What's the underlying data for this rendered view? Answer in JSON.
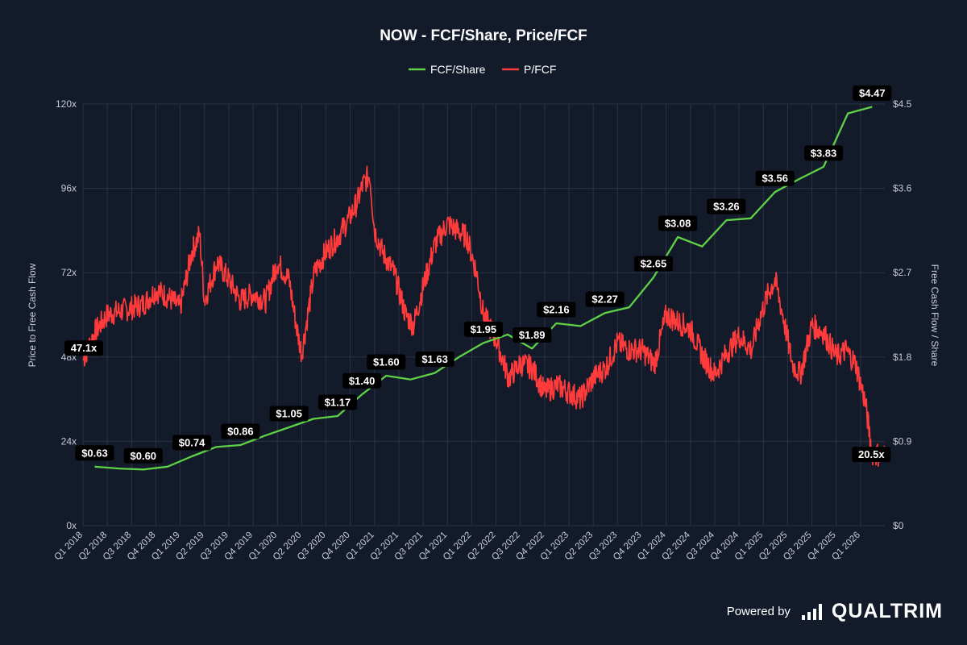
{
  "chart_data": {
    "type": "line",
    "title": "NOW - FCF/Share, Price/FCF",
    "legend": {
      "placement": "top-center"
    },
    "ylabel_left": "Price to Free Cash Flow",
    "ylabel_right": "Free Cash Flow / Share",
    "ylim_left": [
      0,
      120
    ],
    "ylim_right": [
      0,
      4.5
    ],
    "yticks_left": [
      "0x",
      "24x",
      "48x",
      "72x",
      "96x",
      "120x"
    ],
    "yticks_right": [
      "$0",
      "$0.9",
      "$1.8",
      "$2.7",
      "$3.6",
      "$4.5"
    ],
    "x_range": [
      2018.0,
      2026.25
    ],
    "xticks": [
      "Q1 2018",
      "Q2 2018",
      "Q3 2018",
      "Q4 2018",
      "Q1 2019",
      "Q2 2019",
      "Q3 2019",
      "Q4 2019",
      "Q1 2020",
      "Q2 2020",
      "Q3 2020",
      "Q4 2020",
      "Q1 2021",
      "Q2 2021",
      "Q3 2021",
      "Q4 2021",
      "Q1 2022",
      "Q2 2022",
      "Q3 2022",
      "Q4 2022",
      "Q1 2023",
      "Q2 2023",
      "Q3 2023",
      "Q4 2023",
      "Q1 2024",
      "Q2 2024",
      "Q3 2024",
      "Q4 2024",
      "Q1 2025",
      "Q2 2025",
      "Q3 2025",
      "Q4 2025",
      "Q1 2026"
    ],
    "grid": true,
    "colors": {
      "fcf": "#5fd146",
      "pfcf": "#ff3b3b",
      "grid": "#2b3347",
      "text": "#c6cbd6"
    },
    "series": [
      {
        "name": "FCF/Share",
        "axis": "right",
        "color": "#5fd146",
        "x": [
          2018.12,
          2018.37,
          2018.62,
          2018.87,
          2019.12,
          2019.37,
          2019.62,
          2019.87,
          2020.12,
          2020.37,
          2020.62,
          2020.87,
          2021.12,
          2021.37,
          2021.62,
          2021.87,
          2022.12,
          2022.37,
          2022.62,
          2022.87,
          2023.12,
          2023.37,
          2023.62,
          2023.87,
          2024.12,
          2024.37,
          2024.62,
          2024.87,
          2025.12,
          2025.37,
          2025.62,
          2025.87,
          2026.12
        ],
        "values": [
          0.63,
          0.61,
          0.6,
          0.63,
          0.74,
          0.84,
          0.86,
          0.96,
          1.05,
          1.14,
          1.17,
          1.4,
          1.6,
          1.56,
          1.63,
          1.8,
          1.95,
          2.04,
          1.89,
          2.16,
          2.13,
          2.27,
          2.33,
          2.65,
          3.08,
          2.98,
          3.26,
          3.28,
          3.56,
          3.7,
          3.83,
          4.4,
          4.47
        ],
        "labels": [
          {
            "x": 2018.12,
            "value": 0.63,
            "text": "$0.63"
          },
          {
            "x": 2018.62,
            "value": 0.6,
            "text": "$0.60"
          },
          {
            "x": 2019.12,
            "value": 0.74,
            "text": "$0.74"
          },
          {
            "x": 2019.62,
            "value": 0.86,
            "text": "$0.86"
          },
          {
            "x": 2020.12,
            "value": 1.05,
            "text": "$1.05"
          },
          {
            "x": 2020.62,
            "value": 1.17,
            "text": "$1.17"
          },
          {
            "x": 2020.87,
            "value": 1.4,
            "text": "$1.40"
          },
          {
            "x": 2021.12,
            "value": 1.6,
            "text": "$1.60"
          },
          {
            "x": 2021.62,
            "value": 1.63,
            "text": "$1.63"
          },
          {
            "x": 2022.12,
            "value": 1.95,
            "text": "$1.95"
          },
          {
            "x": 2022.62,
            "value": 1.89,
            "text": "$1.89"
          },
          {
            "x": 2022.87,
            "value": 2.16,
            "text": "$2.16"
          },
          {
            "x": 2023.37,
            "value": 2.27,
            "text": "$2.27"
          },
          {
            "x": 2023.87,
            "value": 2.65,
            "text": "$2.65"
          },
          {
            "x": 2024.12,
            "value": 3.08,
            "text": "$3.08"
          },
          {
            "x": 2024.62,
            "value": 3.26,
            "text": "$3.26"
          },
          {
            "x": 2025.12,
            "value": 3.56,
            "text": "$3.56"
          },
          {
            "x": 2025.62,
            "value": 3.83,
            "text": "$3.83"
          },
          {
            "x": 2026.12,
            "value": 4.47,
            "text": "$4.47"
          }
        ]
      },
      {
        "name": "P/FCF",
        "axis": "left",
        "color": "#ff3b3b",
        "x": [
          2018.0,
          2018.12,
          2018.25,
          2018.5,
          2018.62,
          2018.75,
          2018.88,
          2019.0,
          2019.12,
          2019.2,
          2019.25,
          2019.38,
          2019.5,
          2019.62,
          2019.75,
          2019.88,
          2020.0,
          2020.12,
          2020.2,
          2020.25,
          2020.38,
          2020.5,
          2020.62,
          2020.75,
          2020.82,
          2020.88,
          2020.95,
          2021.0,
          2021.08,
          2021.2,
          2021.32,
          2021.4,
          2021.5,
          2021.62,
          2021.75,
          2021.85,
          2021.95,
          2022.05,
          2022.12,
          2022.25,
          2022.38,
          2022.5,
          2022.62,
          2022.75,
          2022.88,
          2023.0,
          2023.12,
          2023.25,
          2023.38,
          2023.5,
          2023.62,
          2023.75,
          2023.88,
          2024.0,
          2024.12,
          2024.25,
          2024.38,
          2024.5,
          2024.62,
          2024.75,
          2024.88,
          2024.95,
          2025.05,
          2025.12,
          2025.2,
          2025.3,
          2025.38,
          2025.5,
          2025.62,
          2025.75,
          2025.85,
          2025.95,
          2026.05,
          2026.12,
          2026.25
        ],
        "values": [
          47.1,
          55,
          60,
          62,
          63,
          67,
          65,
          62,
          78,
          83,
          64,
          75,
          70,
          64,
          66,
          64,
          75,
          70,
          56,
          49,
          72,
          78,
          82,
          88,
          92,
          97,
          100,
          84,
          78,
          72,
          60,
          57,
          68,
          80,
          86,
          84,
          82,
          72,
          60,
          53,
          42,
          46,
          45,
          38,
          40,
          38,
          36,
          42,
          45,
          52,
          50,
          50,
          46,
          60,
          58,
          56,
          48,
          43,
          49,
          54,
          50,
          58,
          66,
          70,
          60,
          46,
          43,
          57,
          55,
          48,
          50,
          46,
          35,
          20.5,
          20
        ]
      }
    ],
    "end_label_pfcf": "20.5x",
    "start_label_pfcf": "47.1x"
  },
  "footer": {
    "powered_by": "Powered by",
    "brand": "QUALTRIM"
  }
}
